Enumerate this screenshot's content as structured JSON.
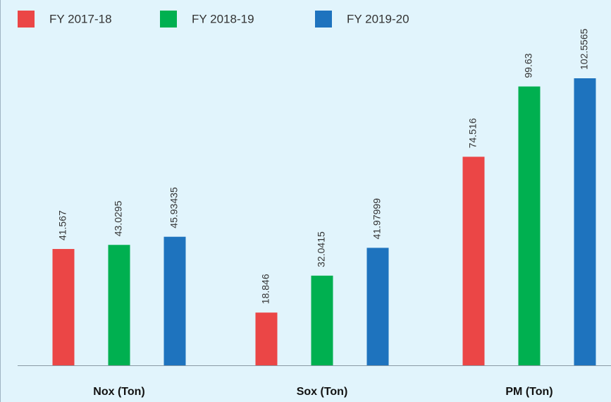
{
  "chart_data": {
    "type": "bar",
    "categories": [
      "Nox (Ton)",
      "Sox (Ton)",
      "PM (Ton)"
    ],
    "series": [
      {
        "name": "FY 2017-18",
        "color": "#eb4646",
        "values": [
          41.567,
          18.846,
          74.516
        ]
      },
      {
        "name": "FY 2018-19",
        "color": "#00b050",
        "values": [
          43.0295,
          32.0415,
          99.63
        ]
      },
      {
        "name": "FY 2019-20",
        "color": "#1e73be",
        "values": [
          45.93435,
          41.97999,
          102.5565
        ]
      }
    ],
    "legend": "top-left"
  }
}
